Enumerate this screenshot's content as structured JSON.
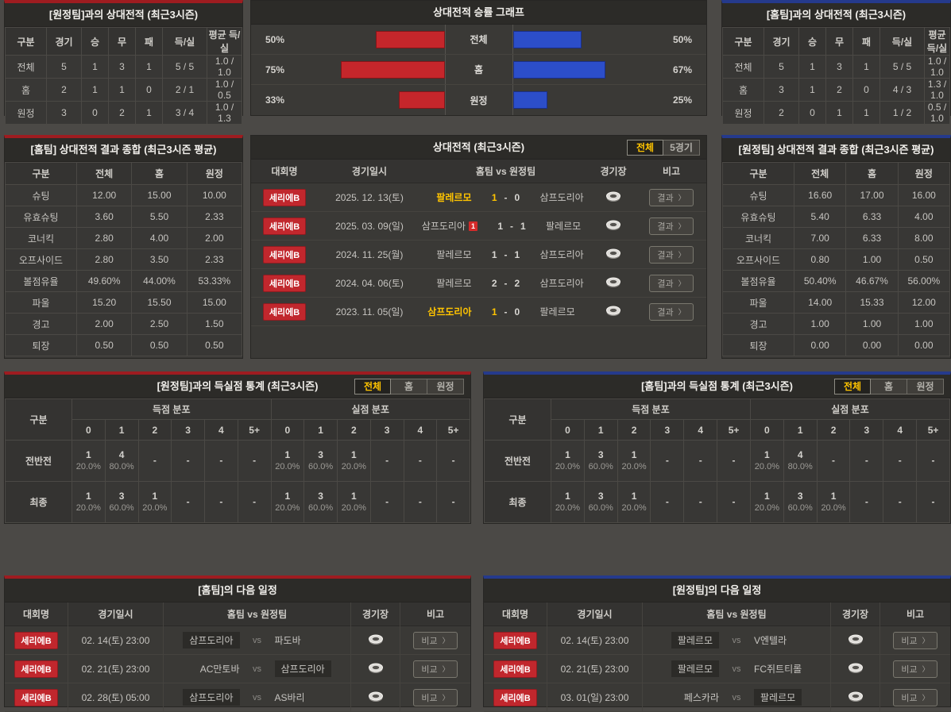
{
  "colors": {
    "home_red": "#c5262b",
    "away_blue": "#2c4ec9",
    "highlight_yellow": "#ffc400",
    "league_badge_red": "#c1272d"
  },
  "list_headers": {
    "league": "대회명",
    "datetime": "경기일시",
    "teams": "홈팀  vs  원정팀",
    "stadium": "경기장",
    "note": "비고"
  },
  "vs_label": "vs",
  "buttons": {
    "result": "결과",
    "compare": "비교",
    "chevron": "〉"
  },
  "panels": {
    "vs_away_record": {
      "title": "[원정팀]과의 상대전적 (최근3시즌)",
      "headers": [
        "구분",
        "경기",
        "승",
        "무",
        "패",
        "득/실",
        "평균 득/실"
      ],
      "rows": [
        [
          "전체",
          "5",
          "1",
          "3",
          "1",
          "5 / 5",
          "1.0 / 1.0"
        ],
        [
          "홈",
          "2",
          "1",
          "1",
          "0",
          "2 / 1",
          "1.0 / 0.5"
        ],
        [
          "원정",
          "3",
          "0",
          "2",
          "1",
          "3 / 4",
          "1.0 / 1.3"
        ]
      ]
    },
    "winrate_graph": {
      "title": "상대전적 승률 그래프",
      "rows": [
        {
          "label": "전체",
          "home_pct_label": "50%",
          "home_pct": 50,
          "away_pct_label": "50%",
          "away_pct": 50
        },
        {
          "label": "홈",
          "home_pct_label": "75%",
          "home_pct": 75,
          "away_pct_label": "67%",
          "away_pct": 67
        },
        {
          "label": "원정",
          "home_pct_label": "33%",
          "home_pct": 33,
          "away_pct_label": "25%",
          "away_pct": 25
        }
      ]
    },
    "vs_home_record": {
      "title": "[홈팀]과의 상대전적 (최근3시즌)",
      "headers": [
        "구분",
        "경기",
        "승",
        "무",
        "패",
        "득/실",
        "평균 득/실"
      ],
      "rows": [
        [
          "전체",
          "5",
          "1",
          "3",
          "1",
          "5 / 5",
          "1.0 / 1.0"
        ],
        [
          "홈",
          "3",
          "1",
          "2",
          "0",
          "4 / 3",
          "1.3 / 1.0"
        ],
        [
          "원정",
          "2",
          "0",
          "1",
          "1",
          "1 / 2",
          "0.5 / 1.0"
        ]
      ]
    },
    "home_summary": {
      "title": "[홈팀] 상대전적 결과 종합 (최근3시즌 평균)",
      "headers": [
        "구분",
        "전체",
        "홈",
        "원정"
      ],
      "rows": [
        [
          "슈팅",
          "12.00",
          "15.00",
          "10.00"
        ],
        [
          "유효슈팅",
          "3.60",
          "5.50",
          "2.33"
        ],
        [
          "코너킥",
          "2.80",
          "4.00",
          "2.00"
        ],
        [
          "오프사이드",
          "2.80",
          "3.50",
          "2.33"
        ],
        [
          "볼점유율",
          "49.60%",
          "44.00%",
          "53.33%"
        ],
        [
          "파울",
          "15.20",
          "15.50",
          "15.00"
        ],
        [
          "경고",
          "2.00",
          "2.50",
          "1.50"
        ],
        [
          "퇴장",
          "0.50",
          "0.50",
          "0.50"
        ]
      ]
    },
    "h2h": {
      "title": "상대전적 (최근3시즌)",
      "tabs": [
        "전체",
        "5경기"
      ],
      "matches": [
        {
          "league": "세리에B",
          "date": "2025. 12. 13(토)",
          "home": "팔레르모",
          "home_redcard": "",
          "home_score": "1",
          "away_score": "0",
          "away": "삼프도리아"
        },
        {
          "league": "세리에B",
          "date": "2025. 03. 09(일)",
          "home": "삼프도리아",
          "home_redcard": "1",
          "home_score": "1",
          "away_score": "1",
          "away": "팔레르모"
        },
        {
          "league": "세리에B",
          "date": "2024. 11. 25(월)",
          "home": "팔레르모",
          "home_redcard": "",
          "home_score": "1",
          "away_score": "1",
          "away": "삼프도리아"
        },
        {
          "league": "세리에B",
          "date": "2024. 04. 06(토)",
          "home": "팔레르모",
          "home_redcard": "",
          "home_score": "2",
          "away_score": "2",
          "away": "삼프도리아"
        },
        {
          "league": "세리에B",
          "date": "2023. 11. 05(일)",
          "home": "삼프도리아",
          "home_redcard": "",
          "home_score": "1",
          "away_score": "0",
          "away": "팔레르모"
        }
      ]
    },
    "away_summary": {
      "title": "[원정팀] 상대전적 결과 종합 (최근3시즌 평균)",
      "headers": [
        "구분",
        "전체",
        "홈",
        "원정"
      ],
      "rows": [
        [
          "슈팅",
          "16.60",
          "17.00",
          "16.00"
        ],
        [
          "유효슈팅",
          "5.40",
          "6.33",
          "4.00"
        ],
        [
          "코너킥",
          "7.00",
          "6.33",
          "8.00"
        ],
        [
          "오프사이드",
          "0.80",
          "1.00",
          "0.50"
        ],
        [
          "볼점유율",
          "50.40%",
          "46.67%",
          "56.00%"
        ],
        [
          "파울",
          "14.00",
          "15.33",
          "12.00"
        ],
        [
          "경고",
          "1.00",
          "1.00",
          "1.00"
        ],
        [
          "퇴장",
          "0.00",
          "0.00",
          "0.00"
        ]
      ]
    },
    "goals_vs_away": {
      "title": "[원정팀]과의 득실점 통계 (최근3시즌)",
      "tabs": [
        "전체",
        "홈",
        "원정"
      ],
      "col_label": "구분",
      "group1": "득점 분포",
      "group2": "실점 분포",
      "bins": [
        "0",
        "1",
        "2",
        "3",
        "4",
        "5+"
      ],
      "rows": [
        {
          "label": "전반전",
          "scored": [
            [
              "1",
              "20.0%"
            ],
            [
              "4",
              "80.0%"
            ],
            [
              "-",
              ""
            ],
            [
              "-",
              ""
            ],
            [
              "-",
              ""
            ],
            [
              "-",
              ""
            ]
          ],
          "conceded": [
            [
              "1",
              "20.0%"
            ],
            [
              "3",
              "60.0%"
            ],
            [
              "1",
              "20.0%"
            ],
            [
              "-",
              ""
            ],
            [
              "-",
              ""
            ],
            [
              "-",
              ""
            ]
          ]
        },
        {
          "label": "최종",
          "scored": [
            [
              "1",
              "20.0%"
            ],
            [
              "3",
              "60.0%"
            ],
            [
              "1",
              "20.0%"
            ],
            [
              "-",
              ""
            ],
            [
              "-",
              ""
            ],
            [
              "-",
              ""
            ]
          ],
          "conceded": [
            [
              "1",
              "20.0%"
            ],
            [
              "3",
              "60.0%"
            ],
            [
              "1",
              "20.0%"
            ],
            [
              "-",
              ""
            ],
            [
              "-",
              ""
            ],
            [
              "-",
              ""
            ]
          ]
        }
      ]
    },
    "goals_vs_home": {
      "title": "[홈팀]과의 득실점 통계 (최근3시즌)",
      "tabs": [
        "전체",
        "홈",
        "원정"
      ],
      "col_label": "구분",
      "group1": "득점 분포",
      "group2": "실점 분포",
      "bins": [
        "0",
        "1",
        "2",
        "3",
        "4",
        "5+"
      ],
      "rows": [
        {
          "label": "전반전",
          "scored": [
            [
              "1",
              "20.0%"
            ],
            [
              "3",
              "60.0%"
            ],
            [
              "1",
              "20.0%"
            ],
            [
              "-",
              ""
            ],
            [
              "-",
              ""
            ],
            [
              "-",
              ""
            ]
          ],
          "conceded": [
            [
              "1",
              "20.0%"
            ],
            [
              "4",
              "80.0%"
            ],
            [
              "-",
              ""
            ],
            [
              "-",
              ""
            ],
            [
              "-",
              ""
            ],
            [
              "-",
              ""
            ]
          ]
        },
        {
          "label": "최종",
          "scored": [
            [
              "1",
              "20.0%"
            ],
            [
              "3",
              "60.0%"
            ],
            [
              "1",
              "20.0%"
            ],
            [
              "-",
              ""
            ],
            [
              "-",
              ""
            ],
            [
              "-",
              ""
            ]
          ],
          "conceded": [
            [
              "1",
              "20.0%"
            ],
            [
              "3",
              "60.0%"
            ],
            [
              "1",
              "20.0%"
            ],
            [
              "-",
              ""
            ],
            [
              "-",
              ""
            ],
            [
              "-",
              ""
            ]
          ]
        }
      ]
    },
    "home_schedule": {
      "title": "[홈팀]의 다음 일정",
      "rows": [
        {
          "league": "세리에B",
          "date": "02. 14(토) 23:00",
          "home": "삼프도리아",
          "away": "파도바",
          "highlight": "home"
        },
        {
          "league": "세리에B",
          "date": "02. 21(토) 23:00",
          "home": "AC만토바",
          "away": "삼프도리아",
          "highlight": "away"
        },
        {
          "league": "세리에B",
          "date": "02. 28(토) 05:00",
          "home": "삼프도리아",
          "away": "AS바리",
          "highlight": "home"
        }
      ]
    },
    "away_schedule": {
      "title": "[원정팀]의 다음 일정",
      "rows": [
        {
          "league": "세리에B",
          "date": "02. 14(토) 23:00",
          "home": "팔레르모",
          "away": "V엔텔라",
          "highlight": "home"
        },
        {
          "league": "세리에B",
          "date": "02. 21(토) 23:00",
          "home": "팔레르모",
          "away": "FC쥐트티롤",
          "highlight": "home"
        },
        {
          "league": "세리에B",
          "date": "03. 01(일) 23:00",
          "home": "페스카라",
          "away": "팔레르모",
          "highlight": "away"
        }
      ]
    }
  },
  "chart_data": {
    "type": "bar",
    "title": "상대전적 승률 그래프",
    "orientation": "horizontal-mirrored",
    "categories": [
      "전체",
      "홈",
      "원정"
    ],
    "series": [
      {
        "name": "left-red",
        "values": [
          50,
          75,
          33
        ]
      },
      {
        "name": "right-blue",
        "values": [
          50,
          67,
          25
        ]
      }
    ],
    "unit": "%",
    "xlim": [
      0,
      100
    ]
  }
}
